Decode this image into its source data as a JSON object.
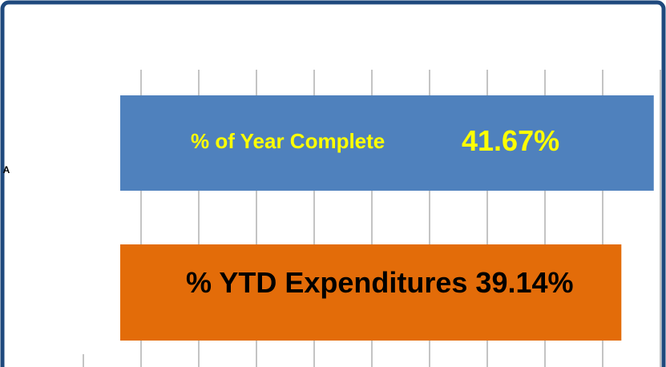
{
  "chart_data": {
    "type": "bar",
    "orientation": "horizontal",
    "categories": [
      "A"
    ],
    "series": [
      {
        "name": "% of Year Complete",
        "color": "#4f81bd",
        "label_color": "#ffff00",
        "values": [
          41.67
        ],
        "value_labels": [
          "41.67%"
        ]
      },
      {
        "name": "% YTD Expenditures",
        "color": "#e36c09",
        "label_color": "#000000",
        "values": [
          39.14
        ],
        "value_labels": [
          "39.14%"
        ]
      }
    ],
    "xlim": [
      0,
      42
    ],
    "grid": true
  }
}
